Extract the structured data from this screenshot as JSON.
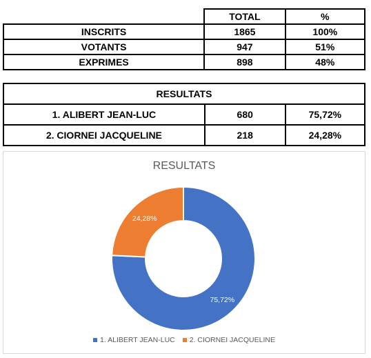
{
  "stats_table": {
    "headers": [
      "TOTAL",
      "%"
    ],
    "rows": [
      {
        "label": "INSCRITS",
        "total": "1865",
        "pct": "100%"
      },
      {
        "label": "VOTANTS",
        "total": "947",
        "pct": "51%"
      },
      {
        "label": "EXPRIMES",
        "total": "898",
        "pct": "48%"
      }
    ]
  },
  "results_table": {
    "title": "RESULTATS",
    "rows": [
      {
        "label": "1. ALIBERT JEAN-LUC",
        "votes": "680",
        "pct": "75,72%"
      },
      {
        "label": "2. CIORNEI JACQUELINE",
        "votes": "218",
        "pct": "24,28%"
      }
    ]
  },
  "chart_data": {
    "type": "pie",
    "style": "donut",
    "title": "RESULTATS",
    "categories": [
      "1. ALIBERT JEAN-LUC",
      "2. CIORNEI JACQUELINE"
    ],
    "values": [
      75.72,
      24.28
    ],
    "data_labels": [
      "75,72%",
      "24,28%"
    ],
    "colors": [
      "#4472c4",
      "#ed7d31"
    ],
    "legend": "bottom"
  }
}
